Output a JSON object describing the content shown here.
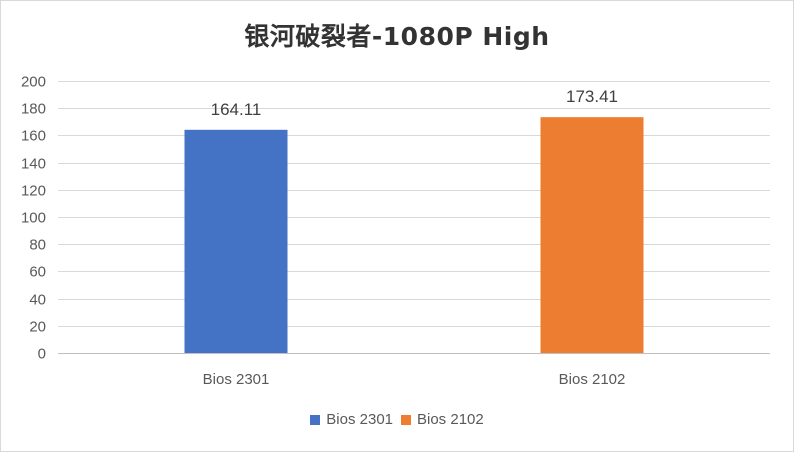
{
  "chart_data": {
    "type": "bar",
    "title": "银河破裂者-1080P High",
    "xlabel": "",
    "ylabel": "",
    "categories": [
      "Bios 2301",
      "Bios 2102"
    ],
    "values": [
      164.11,
      173.41
    ],
    "data_labels": [
      "164.11",
      "173.41"
    ],
    "colors": [
      "#4472C4",
      "#ED7D31"
    ],
    "ylim": [
      0,
      200
    ],
    "yticks": [
      0,
      20,
      40,
      60,
      80,
      100,
      120,
      140,
      160,
      180,
      200
    ],
    "grid": true,
    "legend": {
      "position": "bottom",
      "entries": [
        {
          "label": "Bios 2301",
          "color": "#4472C4"
        },
        {
          "label": "Bios 2102",
          "color": "#ED7D31"
        }
      ]
    }
  }
}
